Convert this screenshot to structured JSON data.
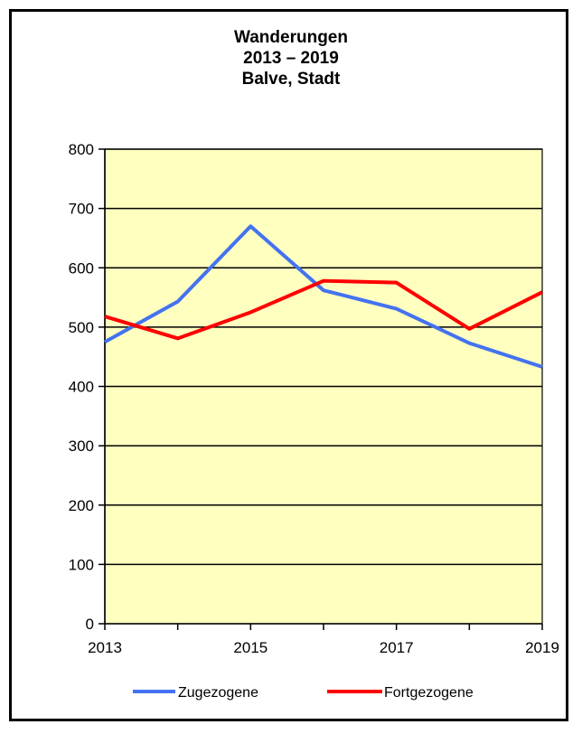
{
  "chart_data": {
    "type": "line",
    "title_lines": [
      "Wanderungen",
      "2013 – 2019",
      "Balve, Stadt"
    ],
    "x": [
      2013,
      2014,
      2015,
      2016,
      2017,
      2018,
      2019
    ],
    "x_tick_labels": [
      "2013",
      "2015",
      "2017",
      "2019"
    ],
    "x_tick_values": [
      2013,
      2015,
      2017,
      2019
    ],
    "ylim": [
      0,
      800
    ],
    "y_ticks": [
      0,
      100,
      200,
      300,
      400,
      500,
      600,
      700,
      800
    ],
    "grid": true,
    "plot_background": "#FFFFC0",
    "legend_position": "bottom",
    "series": [
      {
        "name": "Zugezogene",
        "color": "#4472F0",
        "values": [
          475,
          543,
          670,
          562,
          531,
          473,
          433
        ]
      },
      {
        "name": "Fortgezogene",
        "color": "#FF0000",
        "values": [
          518,
          481,
          525,
          578,
          575,
          497,
          559
        ]
      }
    ]
  }
}
